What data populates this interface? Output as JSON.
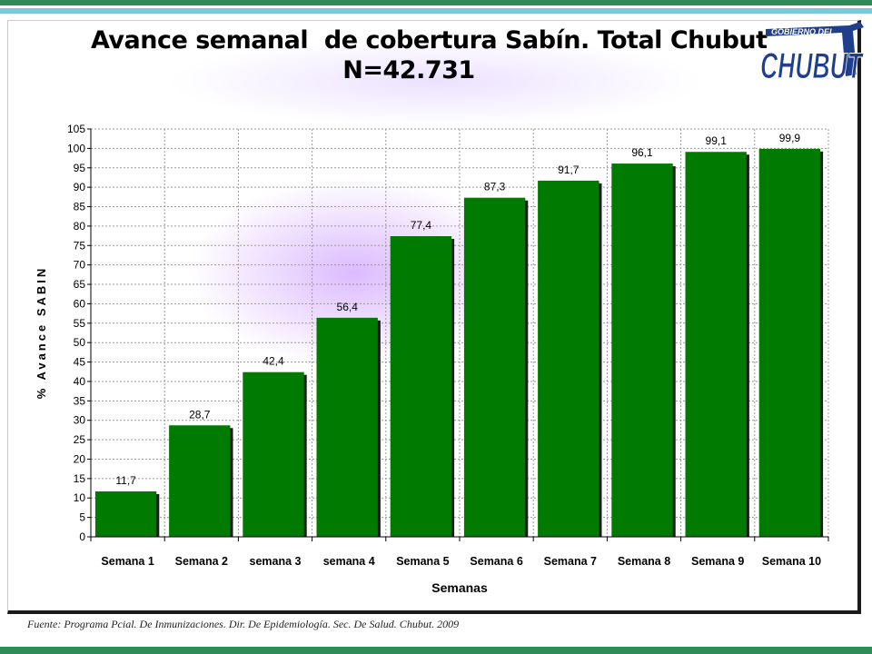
{
  "colors": {
    "bar": "#007a00",
    "bar_shadow": "#1a1a1a",
    "stripe_green": "#2e8b57",
    "stripe_blue": "#79c7e0",
    "logo_blue": "#1f3f8c"
  },
  "logo": {
    "line1": "GOBIERNO DEL",
    "line2": "CHUBUT"
  },
  "source_note": "Fuente: Programa Pcial. De Inmunizaciones. Dir. De Epidemiología. Sec. De Salud. Chubut. 2009",
  "chart_data": {
    "type": "bar",
    "title": "Avance semanal  de cobertura Sabín. Total Chubut",
    "subtitle": "N=42.731",
    "xlabel": "Semanas",
    "ylabel": "% Avance SABIN",
    "categories": [
      "Semana 1",
      "Semana 2",
      "semana 3",
      "semana 4",
      "Semana 5",
      "Semana 6",
      "Semana 7",
      "Semana 8",
      "Semana 9",
      "Semana 10"
    ],
    "values": [
      11.7,
      28.7,
      42.4,
      56.4,
      77.4,
      87.3,
      91.7,
      96.1,
      99.1,
      99.9
    ],
    "data_labels": [
      "11,7",
      "28,7",
      "42,4",
      "56,4",
      "77,4",
      "87,3",
      "91,7",
      "96,1",
      "99,1",
      "99,9"
    ],
    "ylim": [
      0,
      105
    ],
    "ytick_step": 5,
    "grid": true,
    "legend": "none"
  }
}
